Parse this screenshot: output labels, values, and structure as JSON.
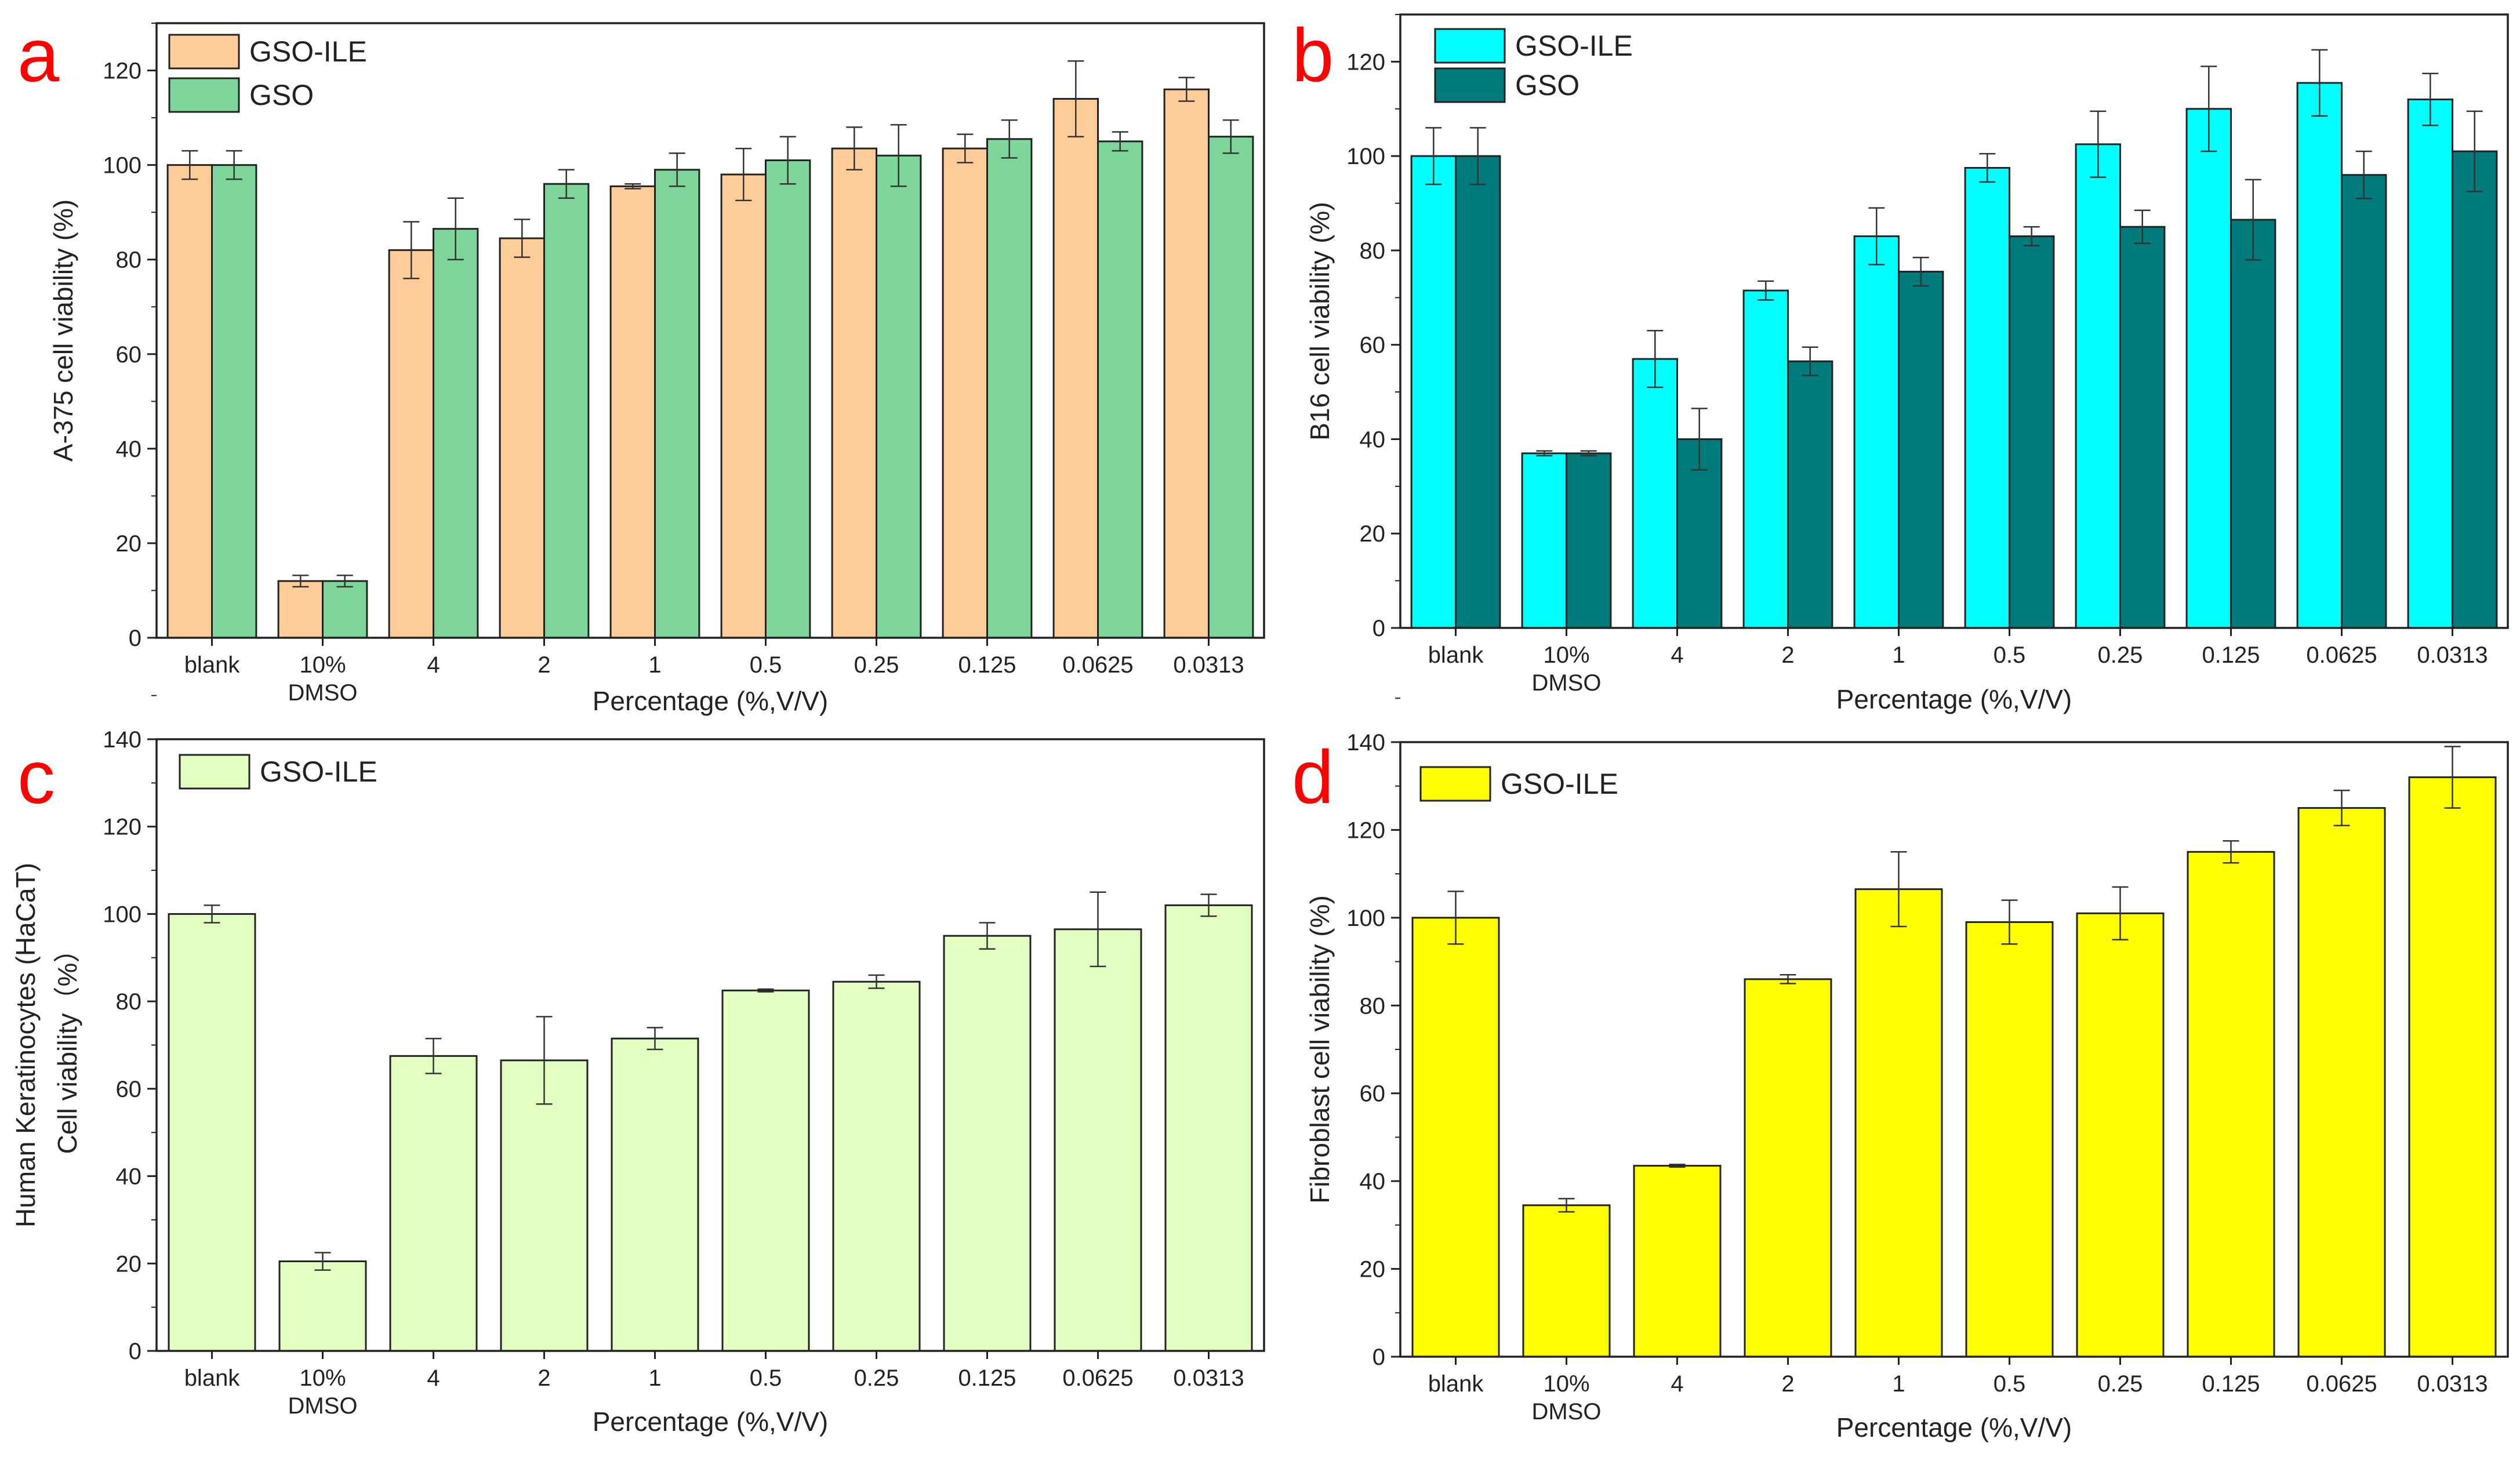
{
  "figure": {
    "panels": [
      "a",
      "b",
      "c",
      "d"
    ]
  },
  "chart_data": [
    {
      "panel_label": "a",
      "type": "bar",
      "title": "",
      "xlabel": "Percentage (%,V/V)",
      "ylabel": "A-375 cell viability (%)",
      "ylim": [
        0,
        130
      ],
      "yticks": [
        0,
        20,
        40,
        60,
        80,
        100,
        120
      ],
      "categories": [
        "blank",
        "10%\nDMSO",
        "4",
        "2",
        "1",
        "0.5",
        "0.25",
        "0.125",
        "0.0625",
        "0.0313"
      ],
      "legend_position": "top-left",
      "series": [
        {
          "name": "GSO-ILE",
          "color": "#fecc98",
          "values": [
            100,
            12,
            82,
            84.5,
            95.5,
            98,
            103.5,
            103.5,
            114,
            116
          ],
          "errors": [
            3,
            1.2,
            6,
            4,
            0.5,
            5.5,
            4.5,
            3,
            8,
            2.5
          ]
        },
        {
          "name": "GSO",
          "color": "#7dd59a",
          "values": [
            100,
            12,
            86.5,
            96,
            99,
            101,
            102,
            105.5,
            105,
            106
          ],
          "errors": [
            3,
            1.2,
            6.5,
            3,
            3.5,
            5,
            6.5,
            4,
            2,
            3.5
          ]
        }
      ]
    },
    {
      "panel_label": "b",
      "type": "bar",
      "title": "",
      "xlabel": "Percentage (%,V/V)",
      "ylabel": "B16 cell viability (%)",
      "ylim": [
        0,
        130
      ],
      "yticks": [
        0,
        20,
        40,
        60,
        80,
        100,
        120
      ],
      "categories": [
        "blank",
        "10%\nDMSO",
        "4",
        "2",
        "1",
        "0.5",
        "0.25",
        "0.125",
        "0.0625",
        "0.0313"
      ],
      "legend_position": "top-left",
      "series": [
        {
          "name": "GSO-ILE",
          "color": "#00ffff",
          "values": [
            100,
            37,
            57,
            71.5,
            83,
            97.5,
            102.5,
            110,
            115.5,
            112
          ],
          "errors": [
            6,
            0.5,
            6,
            2,
            6,
            3,
            7,
            9,
            7,
            5.5
          ]
        },
        {
          "name": "GSO",
          "color": "#007a7a",
          "values": [
            100,
            37,
            40,
            56.5,
            75.5,
            83,
            85,
            86.5,
            96,
            101
          ],
          "errors": [
            6,
            0.5,
            6.5,
            3,
            3,
            2,
            3.5,
            8.5,
            5,
            8.5
          ]
        }
      ]
    },
    {
      "panel_label": "c",
      "type": "bar",
      "title": "",
      "xlabel": "Percentage (%,V/V)",
      "ylabel": [
        "Human Keratinocytes (HaCaT)",
        "Cell  viability（%）"
      ],
      "ylim": [
        0,
        140
      ],
      "yticks": [
        0,
        20,
        40,
        60,
        80,
        100,
        120,
        140
      ],
      "categories": [
        "blank",
        "10%\nDMSO",
        "4",
        "2",
        "1",
        "0.5",
        "0.25",
        "0.125",
        "0.0625",
        "0.0313"
      ],
      "legend_position": "top-left",
      "series": [
        {
          "name": "GSO-ILE",
          "color": "#e0ffc0",
          "values": [
            100,
            20.5,
            67.5,
            66.5,
            71.5,
            82.5,
            84.5,
            95,
            96.5,
            102
          ],
          "errors": [
            2,
            2,
            4,
            10,
            2.5,
            0.3,
            1.5,
            3,
            8.5,
            2.5
          ]
        }
      ]
    },
    {
      "panel_label": "d",
      "type": "bar",
      "title": "",
      "xlabel": "Percentage (%,V/V)",
      "ylabel": "Fibroblast cell viability (%)",
      "ylim": [
        0,
        140
      ],
      "yticks": [
        0,
        20,
        40,
        60,
        80,
        100,
        120,
        140
      ],
      "categories": [
        "blank",
        "10%\nDMSO",
        "4",
        "2",
        "1",
        "0.5",
        "0.25",
        "0.125",
        "0.0625",
        "0.0313"
      ],
      "legend_position": "top-left",
      "series": [
        {
          "name": "GSO-ILE",
          "color": "#ffff00",
          "values": [
            100,
            34.5,
            43.5,
            86,
            106.5,
            99,
            101,
            115,
            125,
            132
          ],
          "errors": [
            6,
            1.5,
            0.3,
            1,
            8.5,
            5,
            6,
            2.5,
            4,
            7
          ]
        }
      ]
    }
  ]
}
